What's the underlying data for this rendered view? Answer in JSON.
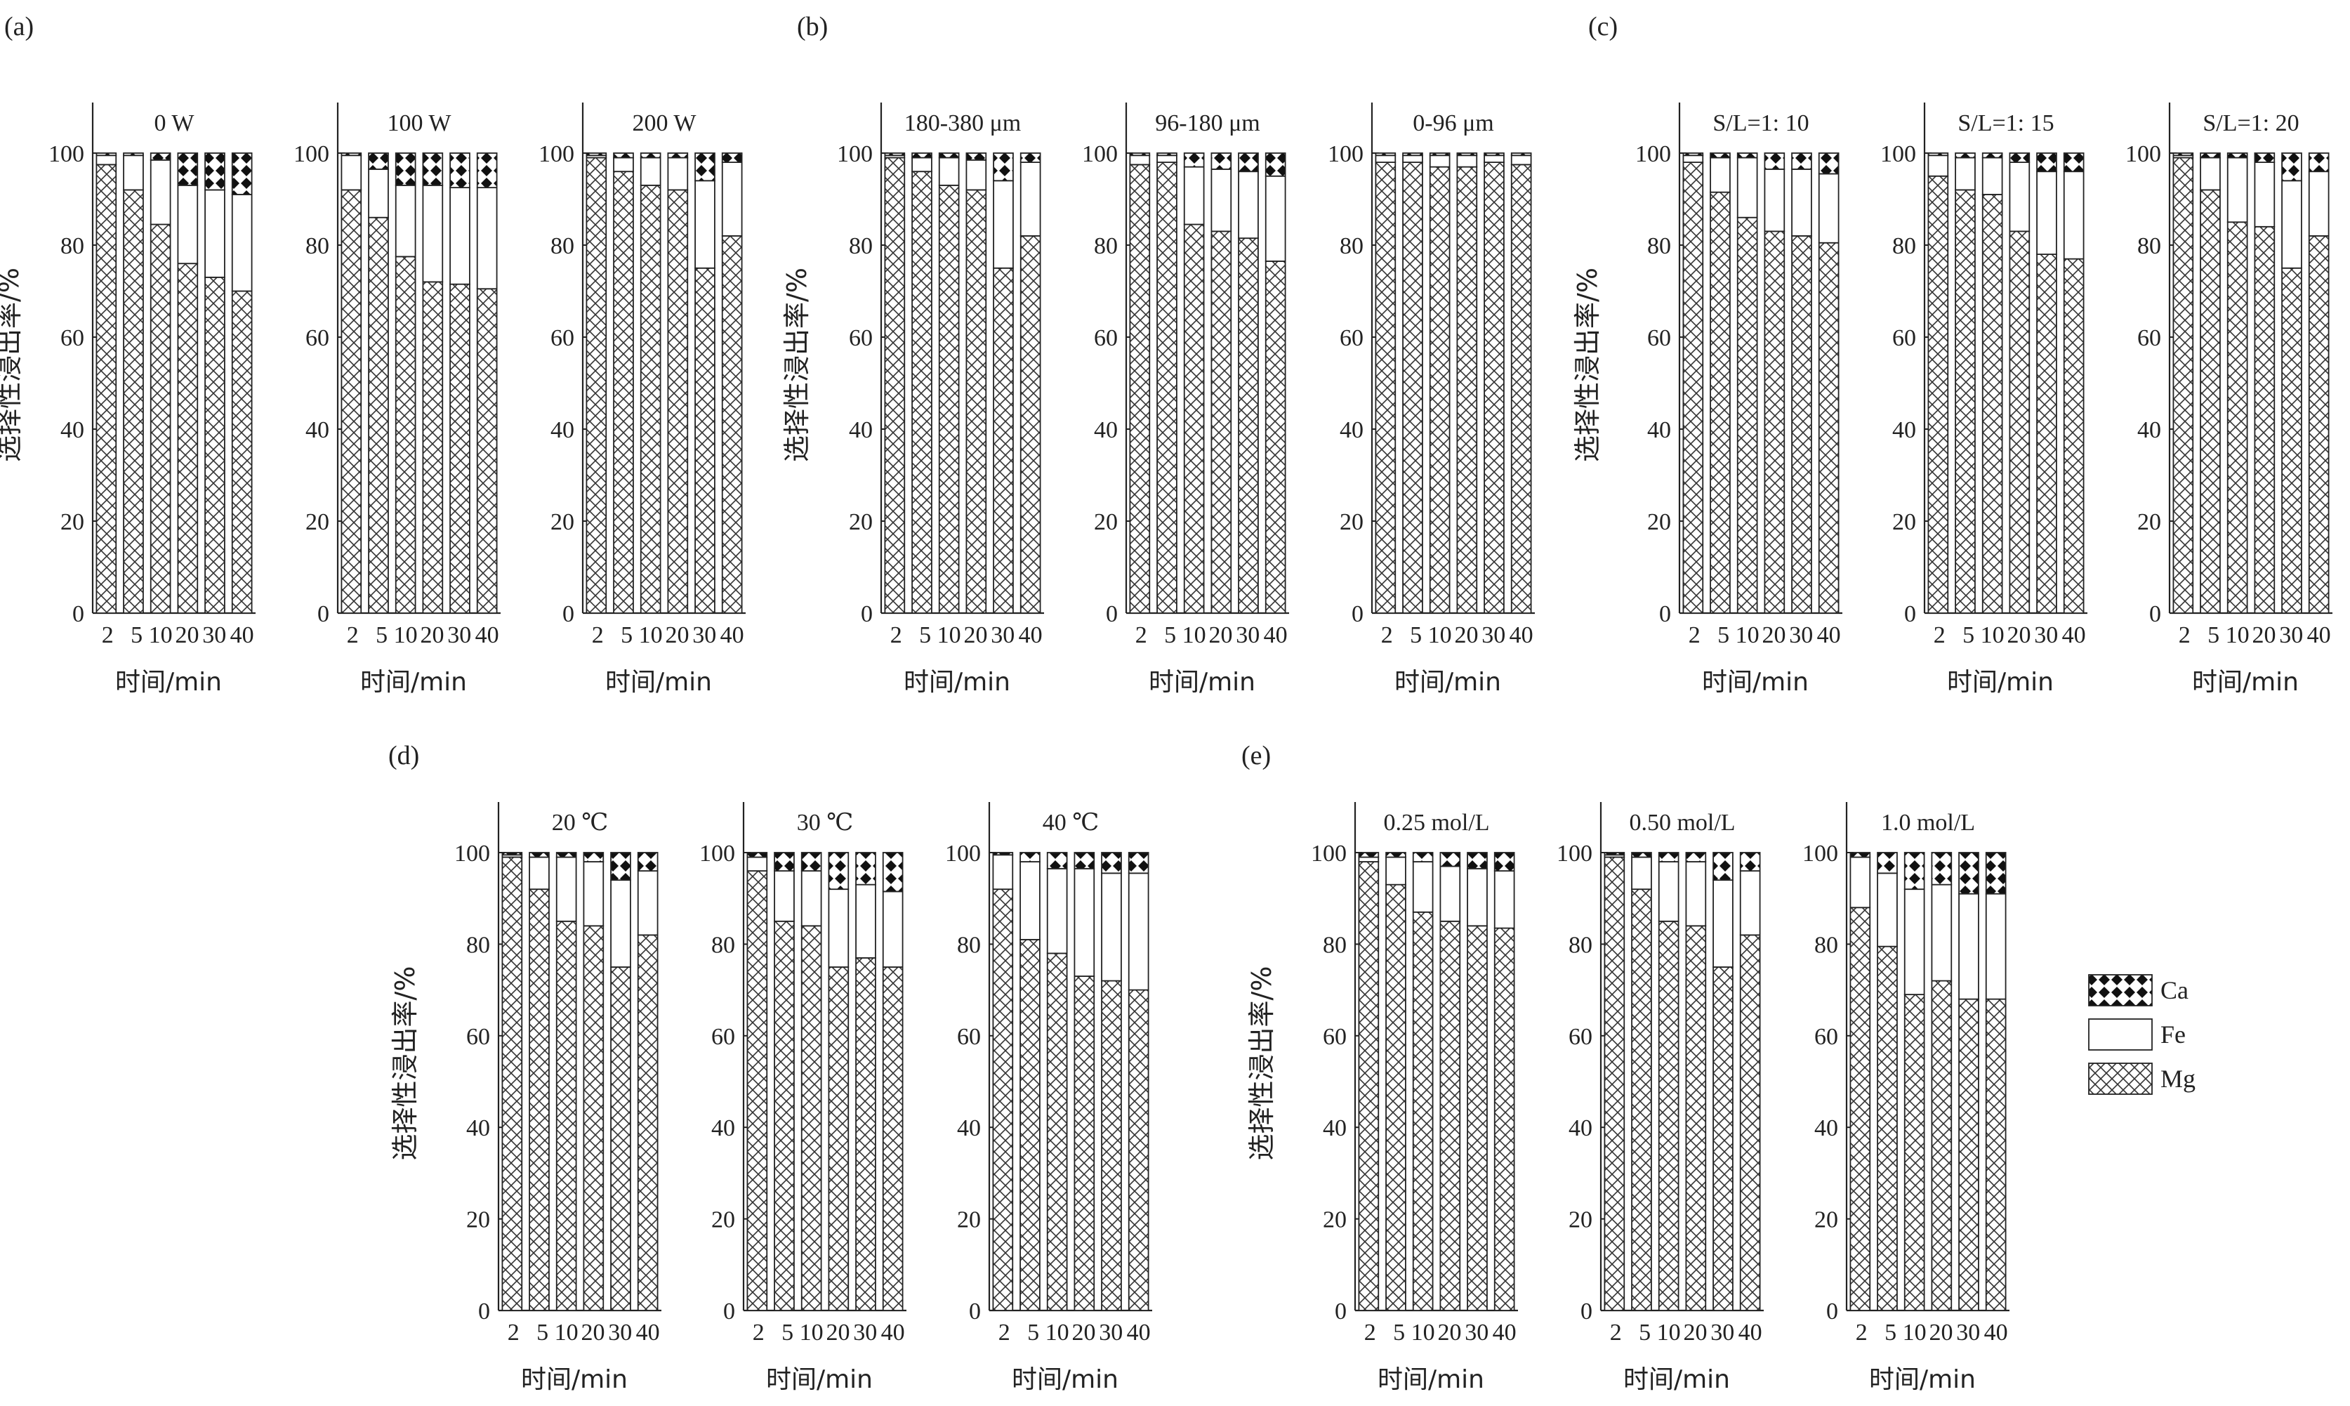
{
  "figure": {
    "x_axis_label": "时间/min",
    "y_axis_label": "选择性浸出率/%",
    "y_ticks": [
      "0",
      "20",
      "40",
      "60",
      "80",
      "100"
    ],
    "x_ticks": [
      "2",
      "5",
      "10",
      "20",
      "30",
      "40"
    ]
  },
  "legend": {
    "placement": "right",
    "items": [
      {
        "name": "Ca",
        "pattern": "diamond-checker"
      },
      {
        "name": "Fe",
        "pattern": "plain-white"
      },
      {
        "name": "Mg",
        "pattern": "crosshatch"
      }
    ]
  },
  "chart_data": [
    {
      "type": "bar",
      "stacked": true,
      "group": "(a)",
      "title": "0 W",
      "xlabel": "时间/min",
      "ylabel": "选择性浸出率/%",
      "ylim": [
        0,
        100
      ],
      "categories": [
        "2",
        "5",
        "10",
        "20",
        "30",
        "40"
      ],
      "series": [
        {
          "name": "Mg",
          "values": [
            97.5,
            92,
            84.5,
            76,
            73,
            70
          ]
        },
        {
          "name": "Fe",
          "values": [
            2,
            7.5,
            14,
            17,
            19,
            21
          ]
        },
        {
          "name": "Ca",
          "values": [
            0.5,
            0.5,
            1.5,
            7,
            8,
            9
          ]
        }
      ]
    },
    {
      "type": "bar",
      "stacked": true,
      "group": "(a)",
      "title": "100 W",
      "xlabel": "时间/min",
      "ylim": [
        0,
        100
      ],
      "categories": [
        "2",
        "5",
        "10",
        "20",
        "30",
        "40"
      ],
      "series": [
        {
          "name": "Mg",
          "values": [
            92,
            86,
            77.5,
            72,
            71.5,
            70.5
          ]
        },
        {
          "name": "Fe",
          "values": [
            7.5,
            10.5,
            15.5,
            21,
            21,
            22
          ]
        },
        {
          "name": "Ca",
          "values": [
            0.5,
            3.5,
            7,
            7,
            7.5,
            7.5
          ]
        }
      ]
    },
    {
      "type": "bar",
      "stacked": true,
      "group": "(a)",
      "title": "200 W",
      "xlabel": "时间/min",
      "ylim": [
        0,
        100
      ],
      "categories": [
        "2",
        "5",
        "10",
        "20",
        "30",
        "40"
      ],
      "series": [
        {
          "name": "Mg",
          "values": [
            99,
            96,
            93,
            92,
            75,
            82
          ]
        },
        {
          "name": "Fe",
          "values": [
            0.5,
            3,
            6,
            7,
            19,
            16
          ]
        },
        {
          "name": "Ca",
          "values": [
            0.5,
            1,
            1,
            1,
            6,
            2
          ]
        }
      ]
    },
    {
      "type": "bar",
      "stacked": true,
      "group": "(b)",
      "title": "180-380 μm",
      "xlabel": "时间/min",
      "ylabel": "选择性浸出率/%",
      "ylim": [
        0,
        100
      ],
      "categories": [
        "2",
        "5",
        "10",
        "20",
        "30",
        "40"
      ],
      "series": [
        {
          "name": "Mg",
          "values": [
            99,
            96,
            93,
            92,
            75,
            82
          ]
        },
        {
          "name": "Fe",
          "values": [
            0.5,
            3,
            6,
            6.5,
            19,
            16
          ]
        },
        {
          "name": "Ca",
          "values": [
            0.5,
            1,
            1,
            1.5,
            6,
            2
          ]
        }
      ]
    },
    {
      "type": "bar",
      "stacked": true,
      "group": "(b)",
      "title": "96-180 μm",
      "xlabel": "时间/min",
      "ylim": [
        0,
        100
      ],
      "categories": [
        "2",
        "5",
        "10",
        "20",
        "30",
        "40"
      ],
      "series": [
        {
          "name": "Mg",
          "values": [
            97.5,
            98,
            84.5,
            83,
            81.5,
            76.5
          ]
        },
        {
          "name": "Fe",
          "values": [
            2,
            1.5,
            12.5,
            13.5,
            14.5,
            18.5
          ]
        },
        {
          "name": "Ca",
          "values": [
            0.5,
            0.5,
            3,
            3.5,
            4,
            5
          ]
        }
      ]
    },
    {
      "type": "bar",
      "stacked": true,
      "group": "(b)",
      "title": "0-96 μm",
      "xlabel": "时间/min",
      "ylim": [
        0,
        100
      ],
      "categories": [
        "2",
        "5",
        "10",
        "20",
        "30",
        "40"
      ],
      "series": [
        {
          "name": "Mg",
          "values": [
            98,
            98,
            97,
            97,
            98,
            97.5
          ]
        },
        {
          "name": "Fe",
          "values": [
            1.5,
            1.5,
            2.5,
            2.5,
            1.5,
            2
          ]
        },
        {
          "name": "Ca",
          "values": [
            0.5,
            0.5,
            0.5,
            0.5,
            0.5,
            0.5
          ]
        }
      ]
    },
    {
      "type": "bar",
      "stacked": true,
      "group": "(c)",
      "title": "S/L=1: 10",
      "xlabel": "时间/min",
      "ylabel": "选择性浸出率/%",
      "ylim": [
        0,
        100
      ],
      "categories": [
        "2",
        "5",
        "10",
        "20",
        "30",
        "40"
      ],
      "series": [
        {
          "name": "Mg",
          "values": [
            98,
            91.5,
            86,
            83,
            82,
            80.5
          ]
        },
        {
          "name": "Fe",
          "values": [
            1.5,
            7.5,
            13,
            13.5,
            14.5,
            15
          ]
        },
        {
          "name": "Ca",
          "values": [
            0.5,
            1,
            1,
            3.5,
            3.5,
            4.5
          ]
        }
      ]
    },
    {
      "type": "bar",
      "stacked": true,
      "group": "(c)",
      "title": "S/L=1: 15",
      "xlabel": "时间/min",
      "ylim": [
        0,
        100
      ],
      "categories": [
        "2",
        "5",
        "10",
        "20",
        "30",
        "40"
      ],
      "series": [
        {
          "name": "Mg",
          "values": [
            95,
            92,
            91,
            83,
            78,
            77
          ]
        },
        {
          "name": "Fe",
          "values": [
            4.5,
            7,
            8,
            15,
            18,
            19
          ]
        },
        {
          "name": "Ca",
          "values": [
            0.5,
            1,
            1,
            2,
            4,
            4
          ]
        }
      ]
    },
    {
      "type": "bar",
      "stacked": true,
      "group": "(c)",
      "title": "S/L=1: 20",
      "xlabel": "时间/min",
      "ylim": [
        0,
        100
      ],
      "categories": [
        "2",
        "5",
        "10",
        "20",
        "30",
        "40"
      ],
      "series": [
        {
          "name": "Mg",
          "values": [
            99,
            92,
            85,
            84,
            75,
            82
          ]
        },
        {
          "name": "Fe",
          "values": [
            0.5,
            7,
            14,
            14,
            19,
            14
          ]
        },
        {
          "name": "Ca",
          "values": [
            0.5,
            1,
            1,
            2,
            6,
            4
          ]
        }
      ]
    },
    {
      "type": "bar",
      "stacked": true,
      "group": "(d)",
      "title": "20 ℃",
      "xlabel": "时间/min",
      "ylabel": "选择性浸出率/%",
      "ylim": [
        0,
        100
      ],
      "categories": [
        "2",
        "5",
        "10",
        "20",
        "30",
        "40"
      ],
      "series": [
        {
          "name": "Mg",
          "values": [
            99,
            92,
            85,
            84,
            75,
            82
          ]
        },
        {
          "name": "Fe",
          "values": [
            0.5,
            7,
            14,
            14,
            19,
            14
          ]
        },
        {
          "name": "Ca",
          "values": [
            0.5,
            1,
            1,
            2,
            6,
            4
          ]
        }
      ]
    },
    {
      "type": "bar",
      "stacked": true,
      "group": "(d)",
      "title": "30 ℃",
      "xlabel": "时间/min",
      "ylim": [
        0,
        100
      ],
      "categories": [
        "2",
        "5",
        "10",
        "20",
        "30",
        "40"
      ],
      "series": [
        {
          "name": "Mg",
          "values": [
            96,
            85,
            84,
            75,
            77,
            75
          ]
        },
        {
          "name": "Fe",
          "values": [
            3,
            11,
            12,
            17,
            16,
            16.5
          ]
        },
        {
          "name": "Ca",
          "values": [
            1,
            4,
            4,
            8,
            7,
            8.5
          ]
        }
      ]
    },
    {
      "type": "bar",
      "stacked": true,
      "group": "(d)",
      "title": "40 ℃",
      "xlabel": "时间/min",
      "ylim": [
        0,
        100
      ],
      "categories": [
        "2",
        "5",
        "10",
        "20",
        "30",
        "40"
      ],
      "series": [
        {
          "name": "Mg",
          "values": [
            92,
            81,
            78,
            73,
            72,
            70
          ]
        },
        {
          "name": "Fe",
          "values": [
            7.5,
            17,
            18.5,
            23.5,
            23.5,
            25.5
          ]
        },
        {
          "name": "Ca",
          "values": [
            0.5,
            2,
            3.5,
            3.5,
            4.5,
            4.5
          ]
        }
      ]
    },
    {
      "type": "bar",
      "stacked": true,
      "group": "(e)",
      "title": "0.25 mol/L",
      "xlabel": "时间/min",
      "ylabel": "选择性浸出率/%",
      "ylim": [
        0,
        100
      ],
      "categories": [
        "2",
        "5",
        "10",
        "20",
        "30",
        "40"
      ],
      "series": [
        {
          "name": "Mg",
          "values": [
            98,
            93,
            87,
            85,
            84,
            83.5
          ]
        },
        {
          "name": "Fe",
          "values": [
            1,
            6,
            11,
            12,
            12.5,
            12.5
          ]
        },
        {
          "name": "Ca",
          "values": [
            1,
            1,
            2,
            3,
            3.5,
            4
          ]
        }
      ]
    },
    {
      "type": "bar",
      "stacked": true,
      "group": "(e)",
      "title": "0.50 mol/L",
      "xlabel": "时间/min",
      "ylim": [
        0,
        100
      ],
      "categories": [
        "2",
        "5",
        "10",
        "20",
        "30",
        "40"
      ],
      "series": [
        {
          "name": "Mg",
          "values": [
            99,
            92,
            85,
            84,
            75,
            82
          ]
        },
        {
          "name": "Fe",
          "values": [
            0.5,
            7,
            13,
            14,
            19,
            14
          ]
        },
        {
          "name": "Ca",
          "values": [
            0.5,
            1,
            2,
            2,
            6,
            4
          ]
        }
      ]
    },
    {
      "type": "bar",
      "stacked": true,
      "group": "(e)",
      "title": "1.0 mol/L",
      "xlabel": "时间/min",
      "ylim": [
        0,
        100
      ],
      "categories": [
        "2",
        "5",
        "10",
        "20",
        "30",
        "40"
      ],
      "series": [
        {
          "name": "Mg",
          "values": [
            88,
            79.5,
            69,
            72,
            68,
            68
          ]
        },
        {
          "name": "Fe",
          "values": [
            11,
            16,
            23,
            21,
            23,
            23
          ]
        },
        {
          "name": "Ca",
          "values": [
            1,
            4.5,
            8,
            7,
            9,
            9
          ]
        }
      ]
    }
  ]
}
